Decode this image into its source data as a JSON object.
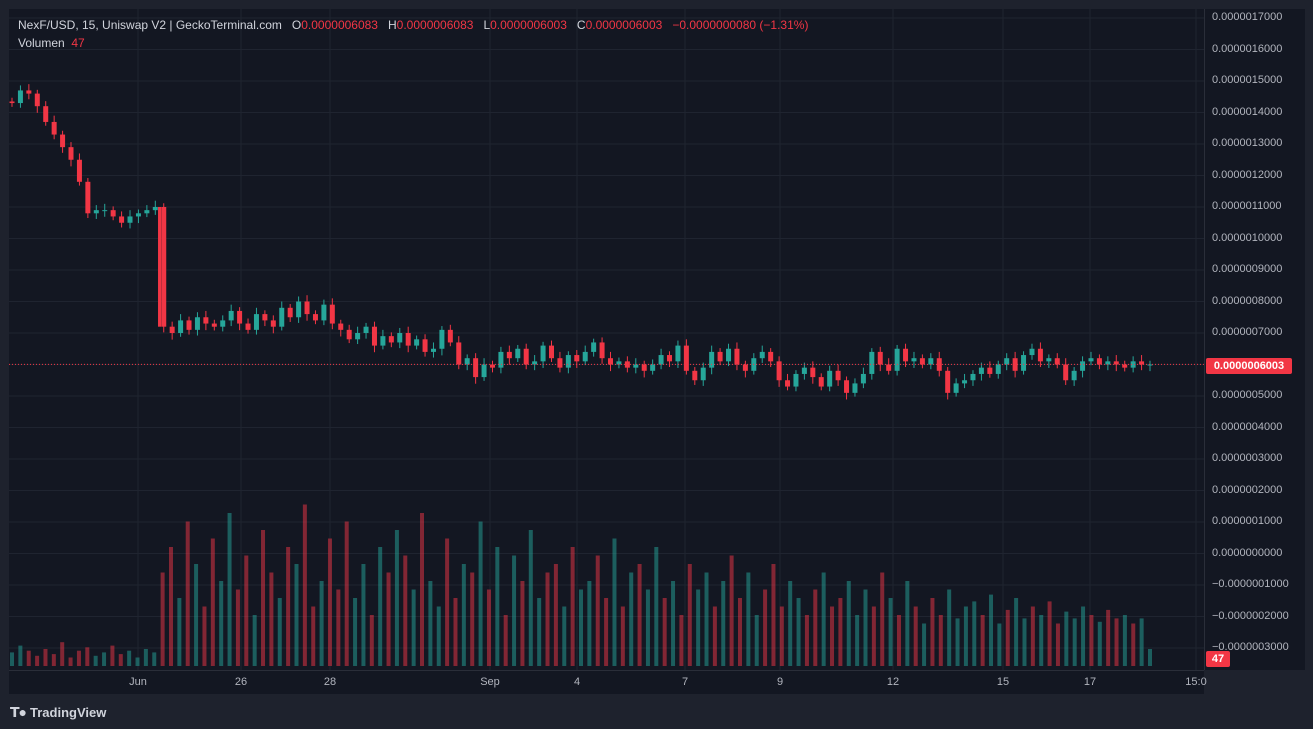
{
  "legend": {
    "symbol": "NexF/USD, 15, Uniswap V2 | GeckoTerminal.com",
    "o_label": "O",
    "o_value": "0.0000006083",
    "h_label": "H",
    "h_value": "0.0000006083",
    "l_label": "L",
    "l_value": "0.0000006003",
    "c_label": "C",
    "c_value": "0.0000006003",
    "change": "−0.0000000080 (−1.31%)",
    "volume_label": "Volumen",
    "volume_value": "47"
  },
  "brand": {
    "name": "TradingView",
    "icon": "tradingview-logo-icon"
  },
  "colors": {
    "up": "#26a69a",
    "down": "#f23645",
    "background": "#131722",
    "grid": "#1f2430",
    "text": "#b2b5be"
  },
  "last_price_label": "0.0000006003",
  "last_volume_label": "47",
  "chart_data": {
    "type": "candlestick",
    "title": "NexF/USD, 15, Uniswap V2 | GeckoTerminal.com",
    "price_axis": {
      "ticks": [
        "0.0000017000",
        "0.0000016000",
        "0.0000015000",
        "0.0000014000",
        "0.0000013000",
        "0.0000012000",
        "0.0000011000",
        "0.0000010000",
        "0.0000009000",
        "0.0000008000",
        "0.0000007000",
        "0.0000006000",
        "0.0000005000",
        "0.0000004000",
        "0.0000003000",
        "0.0000002000",
        "0.0000001000",
        "0.0000000000",
        "−0.0000001000",
        "−0.0000002000",
        "−0.0000003000"
      ],
      "ylim": [
        -3e-07,
        1.7e-06
      ]
    },
    "time_axis": {
      "ticks": [
        "Jun",
        "26",
        "28",
        "Sep",
        "4",
        "7",
        "9",
        "12",
        "15",
        "17",
        "15:0"
      ]
    },
    "last_close": 6.003e-07,
    "last_volume": 47,
    "trend_closes": [
      1.43e-06,
      1.47e-06,
      1.46e-06,
      1.42e-06,
      1.37e-06,
      1.33e-06,
      1.29e-06,
      1.25e-06,
      1.18e-06,
      1.08e-06,
      1.09e-06,
      1.09e-06,
      1.07e-06,
      1.05e-06,
      1.07e-06,
      1.08e-06,
      1.09e-06,
      1.1e-06,
      7.2e-07,
      7e-07,
      7.4e-07,
      7.1e-07,
      7.5e-07,
      7.3e-07,
      7.2e-07,
      7.4e-07,
      7.7e-07,
      7.3e-07,
      7.1e-07,
      7.6e-07,
      7.4e-07,
      7.2e-07,
      7.8e-07,
      7.5e-07,
      8e-07,
      7.6e-07,
      7.4e-07,
      7.9e-07,
      7.3e-07,
      7.1e-07,
      6.8e-07,
      7e-07,
      7.2e-07,
      6.6e-07,
      6.9e-07,
      6.7e-07,
      7e-07,
      6.6e-07,
      6.8e-07,
      6.4e-07,
      6.5e-07,
      7.1e-07,
      6.7e-07,
      6e-07,
      6.2e-07,
      5.6e-07,
      6e-07,
      5.9e-07,
      6.4e-07,
      6.2e-07,
      6.5e-07,
      6e-07,
      6.1e-07,
      6.6e-07,
      6.2e-07,
      5.9e-07,
      6.3e-07,
      6.1e-07,
      6.4e-07,
      6.7e-07,
      6.2e-07,
      6e-07,
      6.1e-07,
      5.9e-07,
      6e-07,
      5.8e-07,
      6e-07,
      6.3e-07,
      6.1e-07,
      6.6e-07,
      5.8e-07,
      5.5e-07,
      5.9e-07,
      6.4e-07,
      6.1e-07,
      6.5e-07,
      6e-07,
      5.8e-07,
      6.2e-07,
      6.4e-07,
      6.1e-07,
      5.5e-07,
      5.3e-07,
      5.7e-07,
      5.9e-07,
      5.6e-07,
      5.3e-07,
      5.8e-07,
      5.5e-07,
      5.1e-07,
      5.4e-07,
      5.7e-07,
      6.4e-07,
      6e-07,
      5.8e-07,
      6.5e-07,
      6.1e-07,
      6.2e-07,
      6e-07,
      6.2e-07,
      5.8e-07,
      5.1e-07,
      5.4e-07,
      5.5e-07,
      5.7e-07,
      5.9e-07,
      5.7e-07,
      6e-07,
      6.2e-07,
      5.8e-07,
      6.3e-07,
      6.5e-07,
      6.1e-07,
      6.2e-07,
      6e-07,
      5.5e-07,
      5.8e-07,
      6.1e-07,
      6.2e-07,
      6e-07,
      6.1e-07,
      6e-07,
      5.9e-07,
      6.1e-07,
      6e-07,
      6e-07
    ],
    "volume_axis_note": "volume histogram along bottom, peak ~ 0.0000001 level",
    "volume_relative": [
      0.08,
      0.12,
      0.09,
      0.06,
      0.1,
      0.07,
      0.14,
      0.05,
      0.09,
      0.11,
      0.06,
      0.08,
      0.12,
      0.07,
      0.09,
      0.05,
      0.1,
      0.08,
      0.55,
      0.7,
      0.4,
      0.85,
      0.6,
      0.35,
      0.75,
      0.5,
      0.9,
      0.45,
      0.65,
      0.3,
      0.8,
      0.55,
      0.4,
      0.7,
      0.6,
      0.95,
      0.35,
      0.5,
      0.75,
      0.45,
      0.85,
      0.4,
      0.6,
      0.3,
      0.7,
      0.55,
      0.8,
      0.65,
      0.45,
      0.9,
      0.5,
      0.35,
      0.75,
      0.4,
      0.6,
      0.55,
      0.85,
      0.45,
      0.7,
      0.3,
      0.65,
      0.5,
      0.8,
      0.4,
      0.55,
      0.6,
      0.35,
      0.7,
      0.45,
      0.5,
      0.65,
      0.4,
      0.75,
      0.35,
      0.55,
      0.6,
      0.45,
      0.7,
      0.4,
      0.5,
      0.3,
      0.6,
      0.45,
      0.55,
      0.35,
      0.5,
      0.65,
      0.4,
      0.55,
      0.3,
      0.45,
      0.6,
      0.35,
      0.5,
      0.4,
      0.3,
      0.45,
      0.55,
      0.35,
      0.4,
      0.5,
      0.3,
      0.45,
      0.35,
      0.55,
      0.4,
      0.3,
      0.5,
      0.35,
      0.25,
      0.4,
      0.3,
      0.45,
      0.28,
      0.35,
      0.38,
      0.3,
      0.42,
      0.25,
      0.33,
      0.4,
      0.28,
      0.35,
      0.3,
      0.38,
      0.25,
      0.32,
      0.28,
      0.35,
      0.3,
      0.26,
      0.33,
      0.28,
      0.3,
      0.25,
      0.28,
      0.1
    ]
  }
}
